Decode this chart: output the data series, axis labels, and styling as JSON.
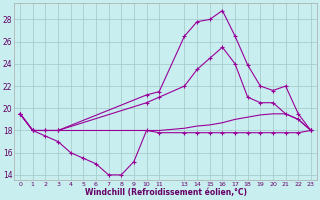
{
  "background_color": "#c8eef0",
  "grid_color": "#aacccc",
  "line_color": "#990099",
  "xlabel": "Windchill (Refroidissement éolien,°C)",
  "ylim": [
    13.5,
    29.5
  ],
  "xlim": [
    -0.5,
    23.5
  ],
  "yticks": [
    14,
    16,
    18,
    20,
    22,
    24,
    26,
    28
  ],
  "xtick_labels": [
    "0",
    "1",
    "2",
    "3",
    "4",
    "5",
    "6",
    "7",
    "8",
    "9",
    "1011",
    "",
    "1314151617181920212223"
  ],
  "series": [
    {
      "x": [
        0,
        1,
        2,
        3,
        4,
        5,
        6,
        7,
        8,
        9,
        10,
        11,
        13,
        14,
        15,
        16,
        17,
        18,
        19,
        20,
        21,
        22,
        23
      ],
      "y": [
        19.5,
        18.0,
        17.5,
        17.0,
        16.0,
        15.5,
        15.0,
        14.0,
        14.0,
        15.2,
        18.0,
        17.8,
        17.8,
        17.8,
        17.8,
        17.8,
        17.8,
        17.8,
        17.8,
        17.8,
        17.8,
        17.8,
        18.0
      ],
      "marker": true
    },
    {
      "x": [
        0,
        1,
        2,
        3,
        4,
        5,
        6,
        7,
        8,
        9,
        10,
        11,
        13,
        14,
        15,
        16,
        17,
        18,
        19,
        20,
        21,
        22,
        23
      ],
      "y": [
        19.5,
        18.0,
        18.0,
        18.0,
        18.0,
        18.0,
        18.0,
        18.0,
        18.0,
        18.0,
        18.0,
        18.0,
        18.2,
        18.4,
        18.5,
        18.7,
        19.0,
        19.2,
        19.4,
        19.5,
        19.5,
        19.0,
        18.0
      ],
      "marker": false
    },
    {
      "x": [
        0,
        1,
        2,
        3,
        10,
        11,
        13,
        14,
        15,
        16,
        17,
        18,
        19,
        20,
        21,
        22,
        23
      ],
      "y": [
        19.5,
        18.0,
        18.0,
        18.0,
        21.2,
        21.5,
        26.5,
        27.8,
        28.0,
        28.8,
        26.5,
        23.9,
        22.0,
        21.6,
        22.0,
        19.5,
        18.0
      ],
      "marker": true
    },
    {
      "x": [
        0,
        1,
        2,
        3,
        10,
        11,
        13,
        14,
        15,
        16,
        17,
        18,
        19,
        20,
        21,
        22,
        23
      ],
      "y": [
        19.5,
        18.0,
        18.0,
        18.0,
        20.5,
        21.0,
        22.0,
        23.5,
        24.5,
        25.5,
        24.0,
        21.0,
        20.5,
        20.5,
        19.5,
        19.0,
        18.0
      ],
      "marker": true
    }
  ]
}
